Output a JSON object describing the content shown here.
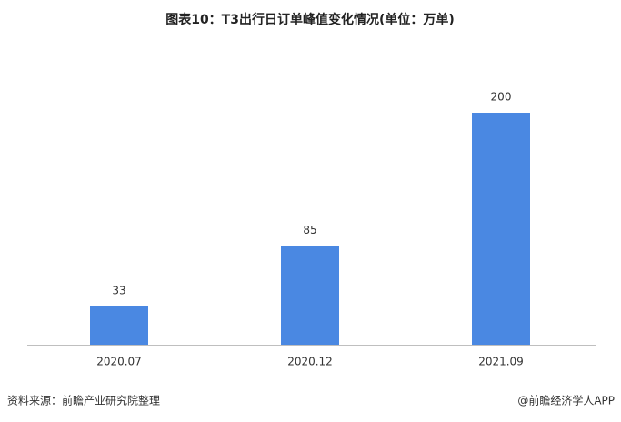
{
  "chart_data": {
    "type": "bar",
    "title": "图表10：T3出行日订单峰值变化情况(单位：万单)",
    "categories": [
      "2020.07",
      "2020.12",
      "2021.09"
    ],
    "values": [
      33,
      85,
      200
    ],
    "color": "#4a88e2",
    "ylim": [
      0,
      200
    ],
    "source": "资料来源：前瞻产业研究院整理",
    "credit": "@前瞻经济学人APP"
  }
}
